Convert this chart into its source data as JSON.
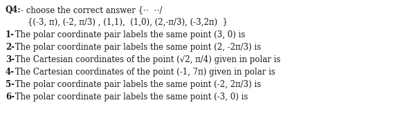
{
  "line0_bold": "Q4:",
  "line0_rest": "- choose the correct answer {⋅⋅⋅  ⋅⋅⋅/",
  "line1": "        {(-3, π), (-2, π/3) , (1,1),  (1,0), (2,-π/3), (-3,2π)  }",
  "lines": [
    "1- The polar coordinate pair labels the same point (3, 0) is",
    "2- The polar coordinate pair labels the same point (2, -2π/3) is",
    "3- The Cartesian coordinates of the point (√2, π/4) given in polar is",
    "4- The Cartesian coordinates of the point (-1, 7π) given in polar is",
    "5- The polar coordinate pair labels the same point (-2, 2π/3) is",
    "6- The polar coordinate pair labels the same point (-3, 0) is"
  ],
  "prefixes": [
    "1-",
    "2-",
    "3-",
    "4-",
    "5-",
    "6-"
  ],
  "text_color": "#1a1a1a",
  "background_color": "#ffffff",
  "font_size": 8.5
}
